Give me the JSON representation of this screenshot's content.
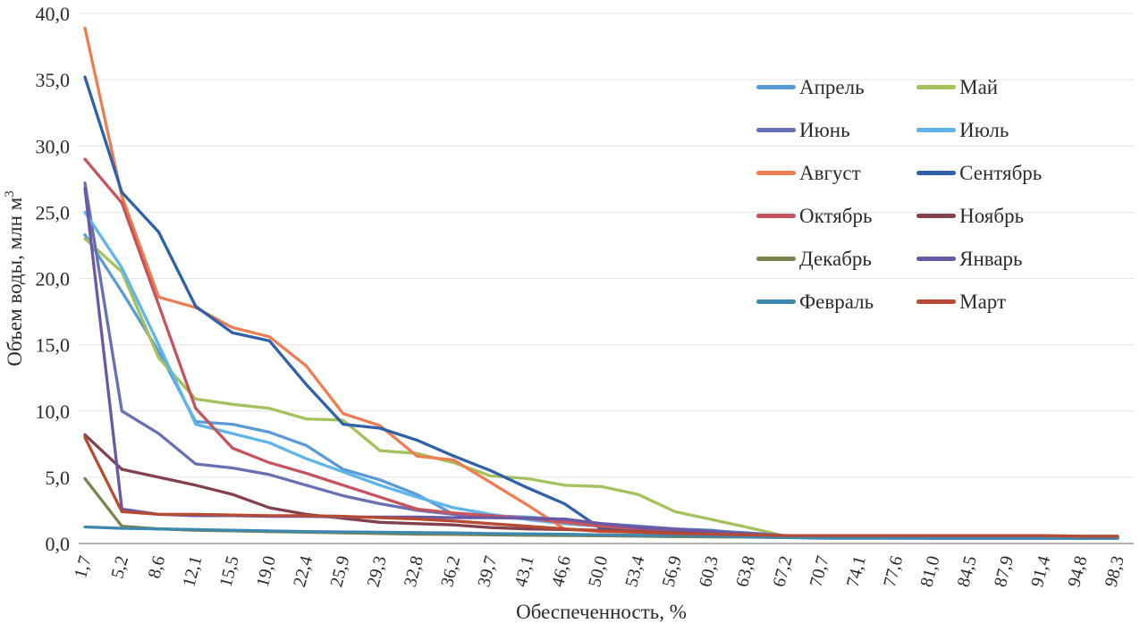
{
  "figure": {
    "background": "#ffffff",
    "text_color": "#2a2a2a",
    "grid_color": "#e4e4e4",
    "axis_color": "#9a9a9a"
  },
  "chart_data": {
    "type": "line",
    "title": "",
    "xlabel": "Обеспеченность, %",
    "ylabel": "Объем воды, млн м",
    "ylabel_superscript": "3",
    "ylim": [
      0,
      40
    ],
    "grid": "horizontal faint gridlines",
    "legend_position": "upper right, two columns",
    "y_ticks": [
      0,
      5,
      10,
      15,
      20,
      25,
      30,
      35,
      40
    ],
    "y_tick_labels": [
      "0,0",
      "5,0",
      "10,0",
      "15,0",
      "20,0",
      "25,0",
      "30,0",
      "35,0",
      "40,0"
    ],
    "x": [
      1.7,
      5.2,
      8.6,
      12.1,
      15.5,
      19.0,
      22.4,
      25.9,
      29.3,
      32.8,
      36.2,
      39.7,
      43.1,
      46.6,
      50.0,
      53.4,
      56.9,
      60.3,
      63.8,
      67.2,
      70.7,
      74.1,
      77.6,
      81.0,
      84.5,
      87.9,
      91.4,
      94.8,
      98.3
    ],
    "x_tick_labels": [
      "1,7",
      "5,2",
      "8,6",
      "12,1",
      "15,5",
      "19,0",
      "22,4",
      "25,9",
      "29,3",
      "32,8",
      "36,2",
      "39,7",
      "43,1",
      "46,6",
      "50,0",
      "53,4",
      "56,9",
      "60,3",
      "63,8",
      "67,2",
      "70,7",
      "74,1",
      "77,6",
      "81,0",
      "84,5",
      "87,9",
      "91,4",
      "94,8",
      "98,3"
    ],
    "series": [
      {
        "name": "Апрель",
        "color": "#5B9BD5",
        "values": [
          23.3,
          19.0,
          14.5,
          9.2,
          9.0,
          8.4,
          7.4,
          5.6,
          4.8,
          3.7,
          2.2,
          2.1,
          2.0,
          1.8,
          1.5,
          1.3,
          1.1,
          1.0,
          0.7,
          0.55,
          0.5,
          0.45,
          0.45,
          0.4,
          0.4,
          0.4,
          0.4,
          0.4,
          0.4
        ]
      },
      {
        "name": "Май",
        "color": "#A3C25D",
        "values": [
          23.0,
          20.5,
          14.0,
          10.9,
          10.5,
          10.2,
          9.4,
          9.3,
          7.0,
          6.8,
          6.1,
          5.1,
          4.9,
          4.4,
          4.3,
          3.7,
          2.4,
          1.8,
          1.2,
          0.55,
          0.5,
          0.45,
          0.45,
          0.4,
          0.4,
          0.4,
          0.4,
          0.4,
          0.4
        ]
      },
      {
        "name": "Июнь",
        "color": "#6770B2",
        "values": [
          27.2,
          10.0,
          8.3,
          6.0,
          5.7,
          5.2,
          4.4,
          3.6,
          3.0,
          2.5,
          2.2,
          2.0,
          1.9,
          1.7,
          1.5,
          1.3,
          1.1,
          0.95,
          0.8,
          0.6,
          0.5,
          0.45,
          0.45,
          0.4,
          0.4,
          0.4,
          0.4,
          0.4,
          0.4
        ]
      },
      {
        "name": "Июль",
        "color": "#5FB4EA",
        "values": [
          25.0,
          20.8,
          15.0,
          9.0,
          8.3,
          7.6,
          6.4,
          5.4,
          4.4,
          3.5,
          2.7,
          2.2,
          1.8,
          1.5,
          1.3,
          1.1,
          1.0,
          0.8,
          0.6,
          0.5,
          0.45,
          0.45,
          0.4,
          0.4,
          0.4,
          0.4,
          0.4,
          0.4,
          0.4
        ]
      },
      {
        "name": "Август",
        "color": "#ED7D52",
        "values": [
          38.9,
          26.2,
          18.6,
          17.8,
          16.3,
          15.6,
          13.4,
          9.8,
          8.9,
          6.6,
          6.3,
          4.6,
          2.9,
          1.1,
          0.9,
          0.85,
          0.8,
          0.7,
          0.6,
          0.55,
          0.5,
          0.5,
          0.5,
          0.5,
          0.5,
          0.5,
          0.5,
          0.5,
          0.5
        ]
      },
      {
        "name": "Сентябрь",
        "color": "#3060A8",
        "values": [
          35.2,
          26.5,
          23.5,
          17.9,
          15.9,
          15.3,
          12.0,
          9.0,
          8.7,
          7.8,
          6.6,
          5.5,
          4.2,
          3.0,
          1.1,
          0.95,
          0.85,
          0.8,
          0.6,
          0.5,
          0.45,
          0.45,
          0.45,
          0.45,
          0.45,
          0.45,
          0.45,
          0.45,
          0.45
        ]
      },
      {
        "name": "Октябрь",
        "color": "#C5545E",
        "values": [
          29.0,
          25.7,
          18.0,
          10.2,
          7.2,
          6.1,
          5.3,
          4.4,
          3.5,
          2.6,
          2.3,
          2.1,
          1.9,
          1.6,
          1.3,
          1.1,
          0.95,
          0.8,
          0.65,
          0.55,
          0.5,
          0.5,
          0.5,
          0.5,
          0.5,
          0.5,
          0.5,
          0.5,
          0.5
        ]
      },
      {
        "name": "Ноябрь",
        "color": "#84414D",
        "values": [
          8.2,
          5.6,
          5.0,
          4.4,
          3.7,
          2.7,
          2.2,
          1.9,
          1.6,
          1.5,
          1.4,
          1.2,
          1.1,
          1.05,
          1.0,
          0.9,
          0.8,
          0.7,
          0.6,
          0.5,
          0.45,
          0.45,
          0.45,
          0.45,
          0.45,
          0.45,
          0.45,
          0.45,
          0.45
        ]
      },
      {
        "name": "Декабрь",
        "color": "#7A8450",
        "values": [
          4.9,
          1.3,
          1.1,
          1.0,
          0.95,
          0.9,
          0.85,
          0.8,
          0.75,
          0.7,
          0.68,
          0.65,
          0.62,
          0.6,
          0.58,
          0.55,
          0.52,
          0.5,
          0.48,
          0.45,
          0.45,
          0.45,
          0.45,
          0.45,
          0.45,
          0.45,
          0.45,
          0.45,
          0.45
        ]
      },
      {
        "name": "Январь",
        "color": "#6A58A5",
        "values": [
          26.8,
          2.6,
          2.2,
          2.1,
          2.1,
          2.05,
          2.05,
          2.0,
          2.0,
          2.0,
          1.95,
          1.95,
          1.9,
          1.85,
          1.5,
          1.2,
          1.05,
          0.9,
          0.7,
          0.55,
          0.5,
          0.45,
          0.45,
          0.45,
          0.45,
          0.45,
          0.45,
          0.45,
          0.45
        ]
      },
      {
        "name": "Февраль",
        "color": "#3E87AE",
        "values": [
          1.25,
          1.15,
          1.1,
          1.05,
          1.0,
          0.95,
          0.9,
          0.88,
          0.85,
          0.82,
          0.8,
          0.75,
          0.72,
          0.7,
          0.65,
          0.62,
          0.6,
          0.55,
          0.5,
          0.45,
          0.4,
          0.4,
          0.4,
          0.4,
          0.4,
          0.4,
          0.4,
          0.4,
          0.4
        ]
      },
      {
        "name": "Март",
        "color": "#B64A33",
        "values": [
          8.0,
          2.4,
          2.2,
          2.2,
          2.15,
          2.1,
          2.1,
          2.05,
          1.95,
          1.85,
          1.7,
          1.5,
          1.3,
          1.1,
          0.95,
          0.85,
          0.75,
          0.7,
          0.65,
          0.6,
          0.6,
          0.6,
          0.6,
          0.6,
          0.6,
          0.6,
          0.6,
          0.55,
          0.55
        ]
      }
    ]
  }
}
